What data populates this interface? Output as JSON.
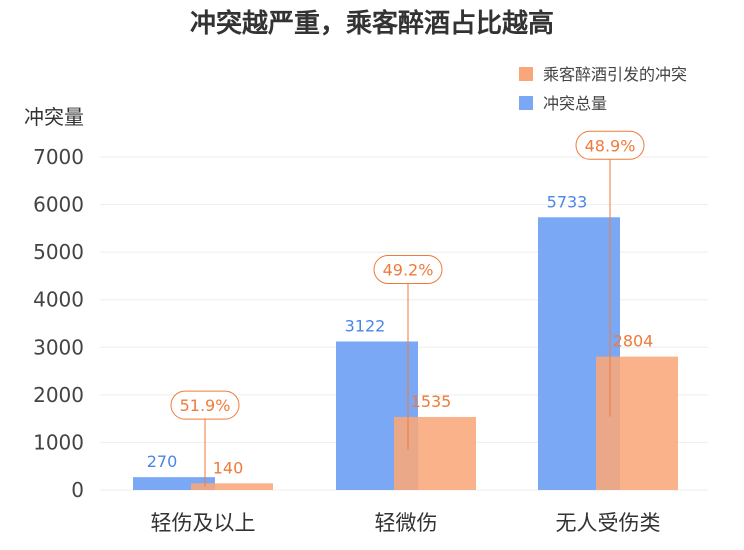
{
  "chart_data": {
    "type": "bar",
    "title": "冲突越严重，乘客醉酒占比越高",
    "ylabel": "冲突量",
    "xlabel": "",
    "ylim": [
      0,
      7000
    ],
    "yticks": [
      "0",
      "1000",
      "2000",
      "3000",
      "4000",
      "5000",
      "6000",
      "7000"
    ],
    "categories": [
      "轻伤及以上",
      "轻微伤",
      "无人受伤类"
    ],
    "series": [
      {
        "name": "冲突总量",
        "values": [
          270,
          3122,
          5733
        ],
        "color": "#7aa8f5"
      },
      {
        "name": "乘客醉酒引发的冲突",
        "values": [
          140,
          1535,
          2804
        ],
        "color": "#f9a77a"
      }
    ],
    "percent_labels": [
      "51.9%",
      "49.2%",
      "48.9%"
    ],
    "legend_order": [
      "乘客醉酒引发的冲突",
      "冲突总量"
    ],
    "legend_position": "top-right",
    "grid": true
  }
}
